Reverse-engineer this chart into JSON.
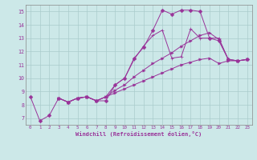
{
  "background_color": "#cce8e8",
  "grid_color": "#aacccc",
  "line_color": "#993399",
  "xlabel": "Windchill (Refroidissement éolien,°C)",
  "xlim": [
    -0.5,
    23.5
  ],
  "ylim": [
    6.5,
    15.5
  ],
  "yticks": [
    7,
    8,
    9,
    10,
    11,
    12,
    13,
    14,
    15
  ],
  "xticks": [
    0,
    1,
    2,
    3,
    4,
    5,
    6,
    7,
    8,
    9,
    10,
    11,
    12,
    13,
    14,
    15,
    16,
    17,
    18,
    19,
    20,
    21,
    22,
    23
  ],
  "line1_x": [
    0,
    1,
    2,
    3,
    4,
    5,
    6,
    7,
    8,
    9,
    10,
    11,
    12,
    13,
    14,
    15,
    16,
    17,
    18,
    19,
    20,
    21,
    22,
    23
  ],
  "line1_y": [
    8.6,
    6.8,
    7.2,
    8.5,
    8.2,
    8.5,
    8.6,
    8.3,
    8.3,
    9.5,
    10.0,
    11.5,
    12.3,
    13.6,
    15.1,
    14.8,
    15.1,
    15.1,
    15.0,
    13.0,
    12.8,
    11.4,
    11.3,
    11.4
  ],
  "line2_x": [
    3,
    4,
    5,
    6,
    7,
    8,
    9,
    10,
    11,
    12,
    13,
    14,
    15,
    16,
    17,
    18,
    19,
    20,
    21,
    22,
    23
  ],
  "line2_y": [
    8.5,
    8.2,
    8.5,
    8.6,
    8.3,
    8.6,
    9.5,
    10.0,
    11.4,
    12.4,
    13.2,
    13.6,
    11.5,
    11.6,
    13.7,
    13.0,
    13.0,
    13.0,
    11.4,
    11.3,
    11.4
  ],
  "line3_x": [
    3,
    4,
    5,
    6,
    7,
    8,
    9,
    10,
    11,
    12,
    13,
    14,
    15,
    16,
    17,
    18,
    19,
    20,
    21,
    22,
    23
  ],
  "line3_y": [
    8.5,
    8.2,
    8.5,
    8.6,
    8.3,
    8.6,
    9.1,
    9.5,
    10.1,
    10.6,
    11.1,
    11.5,
    11.9,
    12.4,
    12.8,
    13.2,
    13.4,
    12.9,
    11.4,
    11.3,
    11.4
  ],
  "line4_x": [
    3,
    4,
    5,
    6,
    7,
    8,
    9,
    10,
    11,
    12,
    13,
    14,
    15,
    16,
    17,
    18,
    19,
    20,
    21,
    22,
    23
  ],
  "line4_y": [
    8.5,
    8.2,
    8.5,
    8.6,
    8.3,
    8.6,
    8.9,
    9.2,
    9.5,
    9.8,
    10.1,
    10.4,
    10.7,
    11.0,
    11.2,
    11.4,
    11.5,
    11.1,
    11.3,
    11.3,
    11.4
  ]
}
